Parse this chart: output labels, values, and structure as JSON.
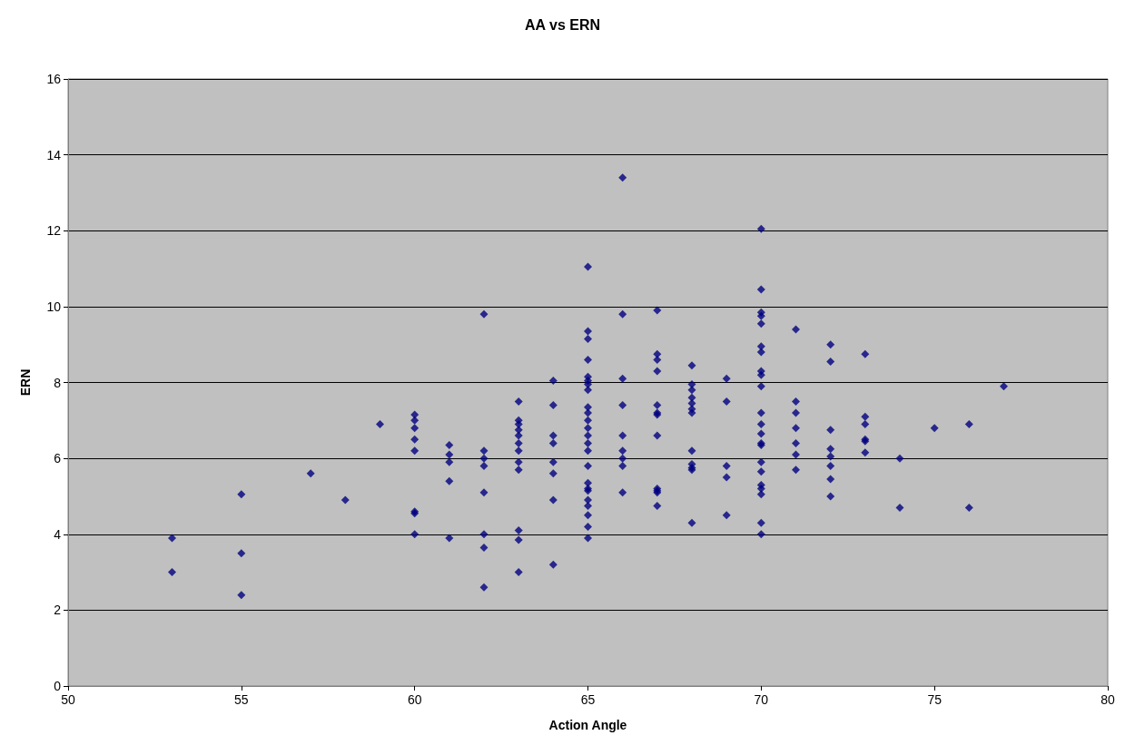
{
  "chart_data": {
    "type": "scatter",
    "title": "AA vs ERN",
    "xlabel": "Action Angle",
    "ylabel": "ERN",
    "x": [
      53,
      53,
      55,
      55,
      55,
      57,
      58,
      59,
      60,
      60,
      60,
      60,
      60,
      60,
      60,
      60,
      61,
      61,
      61,
      61,
      61,
      62,
      62,
      62,
      62,
      62,
      62,
      62,
      62,
      63,
      63,
      63,
      63,
      63,
      63,
      63,
      63,
      63,
      63,
      63,
      63,
      64,
      64,
      64,
      64,
      64,
      64,
      64,
      64,
      65,
      65,
      65,
      65,
      65,
      65,
      65,
      65,
      65,
      65,
      65,
      65,
      65,
      65,
      65,
      65,
      65,
      65,
      65,
      65,
      65,
      65,
      65,
      65,
      66,
      66,
      66,
      66,
      66,
      66,
      66,
      66,
      66,
      67,
      67,
      67,
      67,
      67,
      67,
      67,
      67,
      67,
      67,
      67,
      67,
      68,
      68,
      68,
      68,
      68,
      68,
      68,
      68,
      68,
      68,
      68,
      68,
      69,
      69,
      69,
      69,
      69,
      70,
      70,
      70,
      70,
      70,
      70,
      70,
      70,
      70,
      70,
      70,
      70,
      70,
      70,
      70,
      70,
      70,
      70,
      70,
      70,
      70,
      70,
      71,
      71,
      71,
      71,
      71,
      71,
      71,
      72,
      72,
      72,
      72,
      72,
      72,
      72,
      72,
      73,
      73,
      73,
      73,
      73,
      73,
      74,
      74,
      75,
      76,
      76,
      77
    ],
    "values": [
      3.9,
      3.0,
      5.05,
      3.5,
      2.4,
      5.6,
      4.9,
      6.9,
      7.15,
      7.0,
      6.8,
      6.5,
      6.2,
      4.6,
      4.55,
      4.0,
      6.35,
      6.1,
      5.9,
      5.4,
      3.9,
      9.8,
      6.2,
      6.0,
      5.8,
      5.1,
      4.0,
      3.65,
      2.6,
      7.5,
      7.0,
      6.9,
      6.75,
      6.6,
      6.4,
      6.2,
      5.9,
      5.7,
      4.1,
      3.85,
      3.0,
      8.05,
      7.4,
      6.6,
      6.4,
      5.9,
      5.6,
      4.9,
      3.2,
      11.05,
      9.35,
      9.15,
      8.6,
      8.15,
      8.05,
      7.95,
      7.8,
      7.35,
      7.2,
      7.0,
      6.8,
      6.6,
      6.4,
      6.2,
      5.8,
      5.35,
      5.2,
      5.15,
      4.9,
      4.75,
      4.5,
      4.2,
      3.9,
      13.4,
      9.8,
      8.1,
      7.4,
      6.6,
      6.2,
      6.0,
      5.8,
      5.1,
      9.9,
      8.75,
      8.6,
      8.3,
      7.4,
      7.2,
      7.15,
      6.6,
      5.2,
      5.15,
      5.1,
      4.75,
      8.45,
      7.95,
      7.8,
      7.6,
      7.45,
      7.3,
      7.2,
      6.2,
      5.85,
      5.75,
      5.7,
      4.3,
      8.1,
      7.5,
      5.8,
      5.5,
      4.5,
      12.05,
      10.45,
      9.85,
      9.75,
      9.55,
      8.95,
      8.8,
      8.3,
      8.2,
      7.9,
      7.2,
      6.9,
      6.65,
      6.4,
      6.35,
      5.9,
      5.65,
      5.3,
      5.2,
      5.05,
      4.3,
      4.0,
      9.4,
      7.5,
      7.2,
      6.8,
      6.4,
      6.1,
      5.7,
      9.0,
      8.55,
      6.75,
      6.25,
      6.05,
      5.8,
      5.45,
      5.0,
      8.75,
      7.1,
      6.9,
      6.5,
      6.45,
      6.15,
      6.0,
      4.7,
      6.8,
      6.9,
      4.7,
      7.9
    ],
    "color": "#000080",
    "marker": "diamond",
    "xlim": [
      50,
      80
    ],
    "xticks": [
      50,
      55,
      60,
      65,
      70,
      75,
      80
    ],
    "ylim": [
      0,
      16
    ],
    "yticks": [
      0,
      2,
      4,
      6,
      8,
      10,
      12,
      14,
      16
    ],
    "grid": "y"
  }
}
